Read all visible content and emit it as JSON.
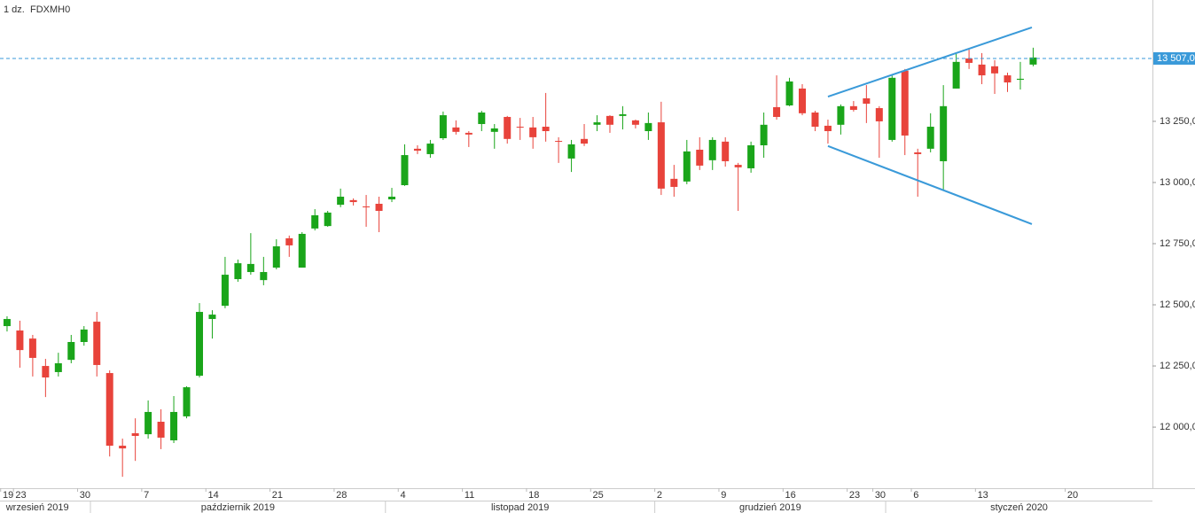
{
  "chart_data": {
    "type": "candlestick",
    "interval": "1 dz.",
    "symbol": "FDXMH0",
    "up_color": "#1aa51a",
    "down_color": "#e8433b",
    "open": [
      12413,
      12395,
      12362,
      12250,
      12225,
      12275,
      12348,
      12431,
      12221,
      11924,
      11975,
      11971,
      12022,
      11946,
      12044,
      12210,
      12442,
      12496,
      12605,
      12634,
      12601,
      12652,
      12772,
      12652,
      12812,
      12822,
      12909,
      12928,
      12902,
      12913,
      12931,
      12989,
      13138,
      13116,
      13181,
      13225,
      13203,
      13239,
      13207,
      13268,
      13228,
      13225,
      13228,
      13170,
      13098,
      13178,
      13236,
      13272,
      13272,
      13254,
      13210,
      13246,
      13015,
      13004,
      13134,
      13091,
      13167,
      13072,
      13058,
      13152,
      13308,
      13315,
      13384,
      13286,
      13232,
      13236,
      13312,
      13344,
      13304,
      13174,
      13457,
      13123,
      13138,
      13087,
      13384,
      13507,
      13482,
      13475,
      13438,
      13420,
      13482
    ],
    "high": [
      12453,
      12435,
      12377,
      12279,
      12304,
      12377,
      12413,
      12471,
      12232,
      11953,
      12036,
      12109,
      12073,
      12127,
      12167,
      12507,
      12478,
      12696,
      12685,
      12793,
      12696,
      12768,
      12783,
      12797,
      12891,
      12884,
      12975,
      12935,
      12949,
      12942,
      12978,
      13156,
      13152,
      13174,
      13290,
      13254,
      13210,
      13293,
      13239,
      13272,
      13264,
      13268,
      13366,
      13185,
      13174,
      13239,
      13275,
      13275,
      13312,
      13257,
      13286,
      13330,
      13072,
      13174,
      13185,
      13185,
      13185,
      13080,
      13167,
      13286,
      13438,
      13428,
      13402,
      13293,
      13257,
      13319,
      13333,
      13398,
      13312,
      13442,
      13464,
      13138,
      13283,
      13398,
      13529,
      13543,
      13529,
      13500,
      13449,
      13493,
      13551
    ],
    "low": [
      12391,
      12243,
      12207,
      12123,
      12207,
      12261,
      12333,
      12207,
      11880,
      11797,
      11862,
      11953,
      11910,
      11935,
      12036,
      12203,
      12362,
      12486,
      12594,
      12623,
      12580,
      12645,
      12696,
      12652,
      12804,
      12819,
      12899,
      12906,
      12819,
      12797,
      12920,
      12986,
      13116,
      13101,
      13174,
      13196,
      13145,
      13210,
      13138,
      13159,
      13174,
      13138,
      13167,
      13080,
      13043,
      13149,
      13210,
      13203,
      13217,
      13221,
      13174,
      12949,
      12942,
      12993,
      13051,
      13051,
      13065,
      12884,
      13040,
      13101,
      13257,
      13312,
      13275,
      13210,
      13159,
      13196,
      13290,
      13243,
      13101,
      13167,
      13112,
      12942,
      13123,
      12971,
      13384,
      13464,
      13402,
      13362,
      13370,
      13380,
      13475
    ],
    "close": [
      12442,
      12315,
      12283,
      12203,
      12261,
      12348,
      12399,
      12254,
      11924,
      11913,
      11964,
      12062,
      11957,
      12062,
      12163,
      12471,
      12460,
      12623,
      12670,
      12667,
      12634,
      12739,
      12743,
      12790,
      12866,
      12877,
      12942,
      12920,
      12899,
      12884,
      12942,
      13112,
      13130,
      13159,
      13275,
      13207,
      13196,
      13286,
      13221,
      13178,
      13225,
      13185,
      13210,
      13167,
      13156,
      13159,
      13246,
      13236,
      13279,
      13236,
      13243,
      12975,
      12982,
      13127,
      13069,
      13174,
      13087,
      13062,
      13152,
      13236,
      13268,
      13413,
      13283,
      13228,
      13210,
      13312,
      13297,
      13322,
      13250,
      13428,
      13192,
      13116,
      13228,
      13312,
      13493,
      13489,
      13438,
      13446,
      13409,
      13424,
      13511
    ],
    "xlim": [
      -0.55,
      89.3
    ],
    "xticks": [
      {
        "value": 0,
        "label": "19"
      },
      {
        "value": 1,
        "label": "23"
      },
      {
        "value": 6,
        "label": "30"
      },
      {
        "value": 11,
        "label": "7"
      },
      {
        "value": 16,
        "label": "14"
      },
      {
        "value": 21,
        "label": "21"
      },
      {
        "value": 26,
        "label": "28"
      },
      {
        "value": 31,
        "label": "4"
      },
      {
        "value": 36,
        "label": "11"
      },
      {
        "value": 41,
        "label": "18"
      },
      {
        "value": 46,
        "label": "25"
      },
      {
        "value": 51,
        "label": "2"
      },
      {
        "value": 56,
        "label": "9"
      },
      {
        "value": 61,
        "label": "16"
      },
      {
        "value": 66,
        "label": "23"
      },
      {
        "value": 68,
        "label": "30"
      },
      {
        "value": 71,
        "label": "6"
      },
      {
        "value": 76,
        "label": "13"
      },
      {
        "value": 83,
        "label": "20"
      }
    ],
    "months": [
      {
        "label": "wrzesień 2019",
        "start": 0
      },
      {
        "label": "październik 2019",
        "start": 7
      },
      {
        "label": "listopad 2019",
        "start": 30
      },
      {
        "label": "grudzień 2019",
        "start": 51
      },
      {
        "label": "styczeń 2020",
        "start": 69
      }
    ],
    "ylim": [
      11754,
      13746
    ],
    "yticks": [
      {
        "value": 12000,
        "label": "12 000,0"
      },
      {
        "value": 12250,
        "label": "12 250,0"
      },
      {
        "value": 12500,
        "label": "12 500,0"
      },
      {
        "value": 12750,
        "label": "12 750,0"
      },
      {
        "value": 13000,
        "label": "13 000,0"
      },
      {
        "value": 13250,
        "label": "13 250,0"
      }
    ],
    "last_price": {
      "value": 13507,
      "label": "13 507,0",
      "color": "#3a9ad9"
    },
    "trendlines": [
      {
        "color": "#3a9ad9",
        "x": [
          64,
          79.9
        ],
        "y": [
          13351,
          13634
        ]
      },
      {
        "color": "#3a9ad9",
        "x": [
          64,
          79.9
        ],
        "y": [
          13149,
          12830
        ]
      }
    ]
  }
}
